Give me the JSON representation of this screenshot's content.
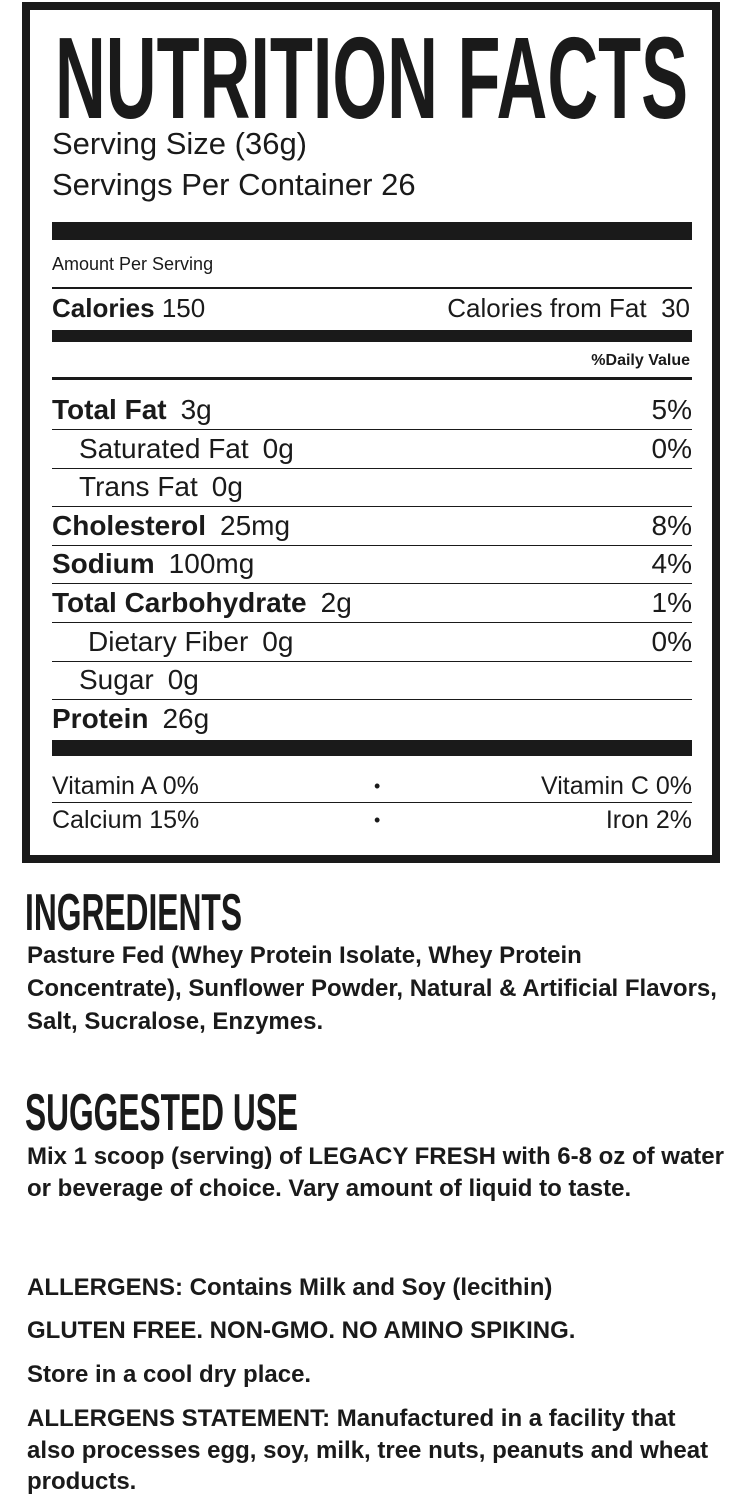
{
  "nutrition_facts": {
    "title": "NUTRITION FACTS",
    "serving_size": "Serving Size (36g)",
    "servings_per_container": "Servings Per Container 26",
    "amount_per_serving": "Amount Per Serving",
    "calories": {
      "label": "Calories",
      "value": "150"
    },
    "calories_from_fat": {
      "label": "Calories from Fat",
      "value": "30"
    },
    "daily_value_header": "%Daily Value",
    "rows": [
      {
        "name": "Total Fat",
        "amount": "3g",
        "dv": "5%",
        "bold": true
      },
      {
        "name": "Saturated Fat",
        "amount": "0g",
        "dv": "0%",
        "indent": true
      },
      {
        "name": "Trans Fat",
        "amount": "0g",
        "indent": true
      },
      {
        "name": "Cholesterol",
        "amount": "25mg",
        "dv": "8%",
        "bold": true
      },
      {
        "name": "Sodium",
        "amount": "100mg",
        "dv": "4%",
        "bold": true
      },
      {
        "name": "Total Carbohydrate",
        "amount": "2g",
        "dv": "1%",
        "bold": true
      },
      {
        "name": "Dietary Fiber",
        "amount": "0g",
        "dv": "0%",
        "indent": true
      },
      {
        "name": "Sugar",
        "amount": "0g",
        "indent": true
      },
      {
        "name": "Protein",
        "amount": "26g",
        "bold": true
      }
    ],
    "vitamins": [
      {
        "left": "Vitamin A  0%",
        "separator": "•",
        "right": "Vitamin C  0%"
      },
      {
        "left": "Calcium 15%",
        "separator": "•",
        "right": "Iron 2%"
      }
    ]
  },
  "ingredients": {
    "heading": "INGREDIENTS",
    "text": "Pasture Fed (Whey Protein Isolate, Whey Protein Concentrate), Sunflower Powder, Natural & Artificial Flavors, Salt, Sucralose, Enzymes."
  },
  "suggested_use": {
    "heading": "SUGGESTED USE",
    "text": "Mix 1 scoop (serving) of LEGACY FRESH with 6-8 oz of water or beverage of choice. Vary amount of liquid to taste."
  },
  "notes": [
    "ALLERGENS: Contains Milk and Soy (lecithin)",
    "GLUTEN FREE. NON-GMO. NO AMINO SPIKING.",
    "Store in a cool dry place.",
    "ALLERGENS STATEMENT: Manufactured in a facility that also processes egg, soy, milk, tree nuts, peanuts and wheat products."
  ]
}
